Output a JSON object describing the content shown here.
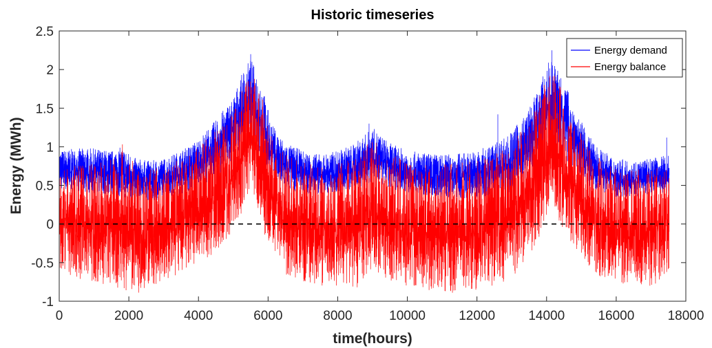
{
  "chart_data": {
    "type": "line",
    "title": "Historic timeseries",
    "xlabel": "time(hours)",
    "ylabel": "Energy (MWh)",
    "xlim": [
      0,
      18000
    ],
    "ylim": [
      -1,
      2.5
    ],
    "xticks": [
      0,
      2000,
      4000,
      6000,
      8000,
      10000,
      12000,
      14000,
      16000,
      18000
    ],
    "xtick_labels": [
      "0",
      "2000",
      "4000",
      "6000",
      "8000",
      "10000",
      "12000",
      "14000",
      "16000",
      "18000"
    ],
    "yticks": [
      -1,
      -0.5,
      0,
      0.5,
      1,
      1.5,
      2,
      2.5
    ],
    "ytick_labels": [
      "-1",
      "-0.5",
      "0",
      "0.5",
      "1",
      "1.5",
      "2",
      "2.5"
    ],
    "grid": false,
    "legend_position": "top-right",
    "x_max_data": 17520,
    "series": [
      {
        "name": "Energy demand",
        "color": "#0000ff",
        "envelope_x": [
          0,
          500,
          1000,
          1500,
          1800,
          2200,
          2600,
          3000,
          3500,
          4000,
          4500,
          5000,
          5300,
          5500,
          5800,
          6100,
          6500,
          7000,
          7500,
          8000,
          8500,
          9000,
          9500,
          10000,
          10500,
          11000,
          11500,
          12000,
          12500,
          13000,
          13500,
          13800,
          14100,
          14400,
          14800,
          15200,
          15600,
          16000,
          16500,
          17000,
          17520
        ],
        "low": [
          0.45,
          0.42,
          0.4,
          0.38,
          0.35,
          0.3,
          0.3,
          0.32,
          0.38,
          0.48,
          0.6,
          0.85,
          1.0,
          1.05,
          0.85,
          0.6,
          0.45,
          0.4,
          0.38,
          0.4,
          0.45,
          0.55,
          0.45,
          0.4,
          0.38,
          0.35,
          0.33,
          0.33,
          0.36,
          0.42,
          0.6,
          0.8,
          0.95,
          0.9,
          0.7,
          0.5,
          0.4,
          0.35,
          0.35,
          0.38,
          0.4
        ],
        "high": [
          0.95,
          0.98,
          0.98,
          0.95,
          1.0,
          0.85,
          0.82,
          0.85,
          0.95,
          1.1,
          1.35,
          1.65,
          2.0,
          2.15,
          1.85,
          1.3,
          1.05,
          0.95,
          0.9,
          0.95,
          1.05,
          1.25,
          1.05,
          0.95,
          0.92,
          0.9,
          0.92,
          0.95,
          1.05,
          1.2,
          1.5,
          1.8,
          2.15,
          2.0,
          1.5,
          1.15,
          0.95,
          0.85,
          0.82,
          0.85,
          0.9
        ],
        "peaks": [
          {
            "x": 5500,
            "y": 2.2
          },
          {
            "x": 14150,
            "y": 2.25
          },
          {
            "x": 12600,
            "y": 1.42
          },
          {
            "x": 8900,
            "y": 1.3
          },
          {
            "x": 17450,
            "y": 1.12
          }
        ]
      },
      {
        "name": "Energy balance",
        "color": "#ff0000",
        "envelope_x": [
          0,
          500,
          1000,
          1500,
          1800,
          2200,
          2600,
          3000,
          3500,
          4000,
          4500,
          5000,
          5300,
          5500,
          5800,
          6100,
          6500,
          7000,
          7500,
          8000,
          8500,
          9000,
          9500,
          10000,
          10500,
          11000,
          11500,
          12000,
          12500,
          13000,
          13500,
          13800,
          14100,
          14400,
          14800,
          15200,
          15600,
          16000,
          16500,
          17000,
          17520
        ],
        "low": [
          -0.6,
          -0.7,
          -0.75,
          -0.8,
          -0.85,
          -0.9,
          -0.85,
          -0.75,
          -0.65,
          -0.55,
          -0.35,
          -0.1,
          0.2,
          0.5,
          0.0,
          -0.4,
          -0.65,
          -0.75,
          -0.8,
          -0.8,
          -0.85,
          -0.6,
          -0.75,
          -0.8,
          -0.85,
          -0.88,
          -0.9,
          -0.85,
          -0.8,
          -0.7,
          -0.4,
          -0.2,
          0.3,
          0.0,
          -0.3,
          -0.55,
          -0.7,
          -0.75,
          -0.8,
          -0.8,
          -0.75
        ],
        "high": [
          0.8,
          0.75,
          0.8,
          0.9,
          1.05,
          0.75,
          0.72,
          0.75,
          0.85,
          1.0,
          1.25,
          1.5,
          1.85,
          2.0,
          1.7,
          1.15,
          0.9,
          0.8,
          0.78,
          0.82,
          0.9,
          1.1,
          0.9,
          0.82,
          0.8,
          0.78,
          0.8,
          0.82,
          0.9,
          1.05,
          1.35,
          1.65,
          2.0,
          1.85,
          1.35,
          1.0,
          0.82,
          0.72,
          0.7,
          0.72,
          0.75
        ]
      }
    ],
    "reference_line": {
      "y": 0,
      "style": "dashed",
      "color": "#000000"
    }
  }
}
